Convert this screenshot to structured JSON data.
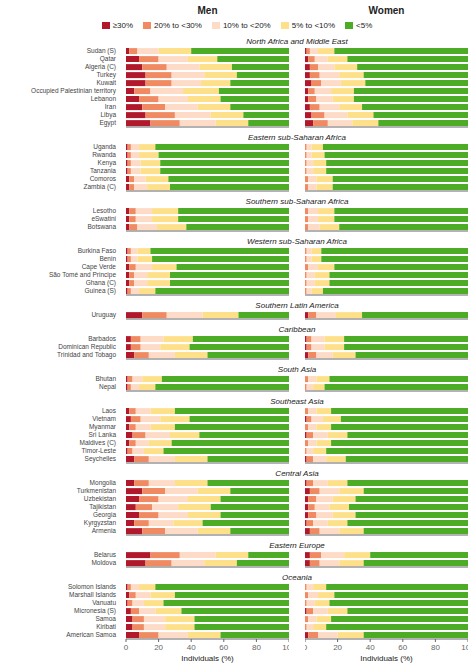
{
  "chart_data": {
    "type": "bar",
    "orientation": "horizontal",
    "stacked": true,
    "legend": "top",
    "grid": false,
    "columns": [
      "Men",
      "Women"
    ],
    "xlabel": "Individuals (%)",
    "xlim": [
      0,
      100
    ],
    "xticks": [
      0,
      20,
      40,
      60,
      80,
      100
    ],
    "series": [
      {
        "name": "≥30%",
        "color": "#b2182b"
      },
      {
        "name": "20% to <30%",
        "color": "#ef8a62"
      },
      {
        "name": "10% to <20%",
        "color": "#fddbc7"
      },
      {
        "name": "5% to <10%",
        "color": "#fee08b"
      },
      {
        "name": "<5%",
        "color": "#4dac26"
      }
    ],
    "groups": [
      {
        "title": "North Africa and Middle East",
        "categories": [
          "Sudan (S)",
          "Qatar",
          "Algeria (C)",
          "Turkey",
          "Kuwait",
          "Occupied Palestinian territory",
          "Lebanon",
          "Iran",
          "Libya",
          "Egypt"
        ],
        "values": [
          [
            [
              2,
              5,
              13,
              20,
              60
            ],
            [
              8,
              12,
              18,
              18,
              44
            ],
            [
              10,
              15,
              20,
              20,
              35
            ],
            [
              12,
              16,
              20,
              20,
              32
            ],
            [
              12,
              16,
              18,
              18,
              36
            ],
            [
              5,
              10,
              20,
              22,
              43
            ],
            [
              8,
              12,
              18,
              20,
              42
            ],
            [
              10,
              14,
              20,
              20,
              36
            ],
            [
              12,
              18,
              22,
              20,
              28
            ],
            [
              15,
              18,
              22,
              20,
              25
            ]
          ],
          [
            [
              1,
              2,
              5,
              10,
              82
            ],
            [
              2,
              4,
              8,
              12,
              74
            ],
            [
              3,
              5,
              10,
              14,
              68
            ],
            [
              3,
              6,
              12,
              15,
              64
            ],
            [
              4,
              6,
              12,
              15,
              63
            ],
            [
              2,
              4,
              10,
              14,
              70
            ],
            [
              2,
              5,
              10,
              13,
              70
            ],
            [
              3,
              6,
              12,
              14,
              65
            ],
            [
              4,
              8,
              14,
              16,
              58
            ],
            [
              5,
              9,
              15,
              16,
              55
            ]
          ]
        ]
      },
      {
        "title": "Eastern sub-Saharan Africa",
        "categories": [
          "Uganda",
          "Rwanda",
          "Kenya",
          "Tanzania",
          "Comoros",
          "Zambia (C)"
        ],
        "values": [
          [
            [
              1,
              2,
              5,
              10,
              82
            ],
            [
              1,
              2,
              5,
              12,
              80
            ],
            [
              1,
              2,
              6,
              12,
              79
            ],
            [
              1,
              2,
              6,
              12,
              79
            ],
            [
              2,
              3,
              7,
              14,
              74
            ],
            [
              2,
              3,
              8,
              14,
              73
            ]
          ],
          [
            [
              0,
              1,
              3,
              7,
              89
            ],
            [
              0,
              1,
              3,
              8,
              88
            ],
            [
              0,
              1,
              4,
              8,
              87
            ],
            [
              0,
              1,
              4,
              8,
              87
            ],
            [
              0,
              2,
              5,
              10,
              83
            ],
            [
              0,
              2,
              5,
              10,
              83
            ]
          ]
        ]
      },
      {
        "title": "Southern sub-Saharan Africa",
        "categories": [
          "Lesotho",
          "eSwatini",
          "Botswana"
        ],
        "values": [
          [
            [
              2,
              4,
              10,
              16,
              68
            ],
            [
              2,
              4,
              10,
              16,
              68
            ],
            [
              2,
              5,
              12,
              18,
              63
            ]
          ],
          [
            [
              0,
              2,
              6,
              10,
              82
            ],
            [
              0,
              2,
              6,
              10,
              82
            ],
            [
              0,
              2,
              7,
              12,
              79
            ]
          ]
        ]
      },
      {
        "title": "Western sub-Saharan Africa",
        "categories": [
          "Burkina Faso",
          "Benin",
          "Cape Verde",
          "São Tomé and Principe",
          "Ghana (C)",
          "Guinea (S)"
        ],
        "values": [
          [
            [
              1,
              2,
              4,
              8,
              85
            ],
            [
              1,
              2,
              4,
              9,
              84
            ],
            [
              2,
              4,
              10,
              15,
              69
            ],
            [
              2,
              3,
              8,
              14,
              73
            ],
            [
              2,
              3,
              8,
              14,
              73
            ],
            [
              1,
              2,
              5,
              10,
              82
            ]
          ],
          [
            [
              0,
              1,
              3,
              6,
              90
            ],
            [
              0,
              1,
              3,
              6,
              90
            ],
            [
              0,
              2,
              6,
              10,
              82
            ],
            [
              0,
              1,
              5,
              9,
              85
            ],
            [
              0,
              1,
              5,
              9,
              85
            ],
            [
              0,
              1,
              3,
              7,
              89
            ]
          ]
        ]
      },
      {
        "title": "Southern Latin America",
        "categories": [
          "Uruguay"
        ],
        "values": [
          [
            [
              10,
              15,
              22,
              22,
              31
            ]
          ],
          [
            [
              2,
              5,
              12,
              16,
              65
            ]
          ]
        ]
      },
      {
        "title": "Caribbean",
        "categories": [
          "Barbados",
          "Dominican Republic",
          "Trinidad and Tobago"
        ],
        "values": [
          [
            [
              3,
              6,
              14,
              18,
              59
            ],
            [
              3,
              6,
              12,
              18,
              61
            ],
            [
              5,
              9,
              16,
              20,
              50
            ]
          ],
          [
            [
              1,
              3,
              8,
              12,
              76
            ],
            [
              1,
              3,
              8,
              12,
              76
            ],
            [
              2,
              5,
              10,
              14,
              69
            ]
          ]
        ]
      },
      {
        "title": "South Asia",
        "categories": [
          "Bhutan",
          "Nepal"
        ],
        "values": [
          [
            [
              1,
              3,
              6,
              12,
              78
            ],
            [
              1,
              2,
              5,
              10,
              82
            ]
          ],
          [
            [
              0,
              2,
              5,
              8,
              85
            ],
            [
              0,
              1,
              4,
              7,
              88
            ]
          ]
        ]
      },
      {
        "title": "Southeast Asia",
        "categories": [
          "Laos",
          "Vietnam",
          "Myanmar",
          "Sri Lanka",
          "Maldives (C)",
          "Timor-Leste",
          "Seychelles"
        ],
        "values": [
          [
            [
              2,
              4,
              9,
              15,
              70
            ],
            [
              3,
              6,
              12,
              18,
              61
            ],
            [
              2,
              4,
              9,
              15,
              70
            ],
            [
              4,
              8,
              15,
              18,
              55
            ],
            [
              2,
              4,
              8,
              14,
              72
            ],
            [
              1,
              3,
              7,
              12,
              77
            ],
            [
              5,
              9,
              16,
              20,
              50
            ]
          ],
          [
            [
              0,
              2,
              5,
              9,
              84
            ],
            [
              1,
              3,
              7,
              11,
              78
            ],
            [
              0,
              2,
              5,
              9,
              84
            ],
            [
              1,
              4,
              9,
              12,
              74
            ],
            [
              0,
              2,
              5,
              9,
              84
            ],
            [
              0,
              1,
              4,
              8,
              87
            ],
            [
              1,
              4,
              8,
              12,
              75
            ]
          ]
        ]
      },
      {
        "title": "Central Asia",
        "categories": [
          "Mongolia",
          "Turkmenistan",
          "Uzbekistan",
          "Tajikistan",
          "Georgia",
          "Kyrgyzstan",
          "Armenia"
        ],
        "values": [
          [
            [
              5,
              9,
              16,
              20,
              50
            ],
            [
              10,
              14,
              20,
              20,
              36
            ],
            [
              8,
              12,
              18,
              20,
              42
            ],
            [
              6,
              10,
              16,
              20,
              48
            ],
            [
              8,
              12,
              18,
              20,
              42
            ],
            [
              5,
              9,
              15,
              18,
              53
            ],
            [
              10,
              14,
              20,
              20,
              36
            ]
          ],
          [
            [
              1,
              4,
              9,
              12,
              74
            ],
            [
              3,
              6,
              12,
              15,
              64
            ],
            [
              2,
              5,
              10,
              14,
              69
            ],
            [
              2,
              4,
              9,
              12,
              73
            ],
            [
              2,
              5,
              10,
              14,
              69
            ],
            [
              1,
              4,
              9,
              12,
              74
            ],
            [
              3,
              6,
              12,
              15,
              64
            ]
          ]
        ]
      },
      {
        "title": "Eastern Europe",
        "categories": [
          "Belarus",
          "Moldova"
        ],
        "values": [
          [
            [
              15,
              18,
              22,
              20,
              25
            ],
            [
              12,
              16,
              20,
              20,
              32
            ]
          ],
          [
            [
              3,
              7,
              14,
              16,
              60
            ],
            [
              3,
              6,
              12,
              15,
              64
            ]
          ]
        ]
      },
      {
        "title": "Oceania",
        "categories": [
          "Solomon Islands",
          "Marshall Islands",
          "Vanuatu",
          "Micronesia (S)",
          "Samoa",
          "Kiribati",
          "American Samoa"
        ],
        "values": [
          [
            [
              1,
              2,
              5,
              10,
              82
            ],
            [
              2,
              4,
              9,
              15,
              70
            ],
            [
              1,
              3,
              7,
              12,
              77
            ],
            [
              3,
              5,
              10,
              16,
              66
            ],
            [
              4,
              7,
              13,
              18,
              58
            ],
            [
              4,
              7,
              13,
              18,
              58
            ],
            [
              8,
              12,
              18,
              20,
              42
            ]
          ],
          [
            [
              0,
              1,
              4,
              8,
              87
            ],
            [
              0,
              2,
              6,
              10,
              82
            ],
            [
              0,
              1,
              5,
              9,
              85
            ],
            [
              1,
              4,
              9,
              12,
              74
            ],
            [
              0,
              2,
              5,
              9,
              84
            ],
            [
              0,
              1,
              4,
              8,
              87
            ],
            [
              2,
              6,
              12,
              16,
              64
            ]
          ]
        ]
      }
    ]
  }
}
